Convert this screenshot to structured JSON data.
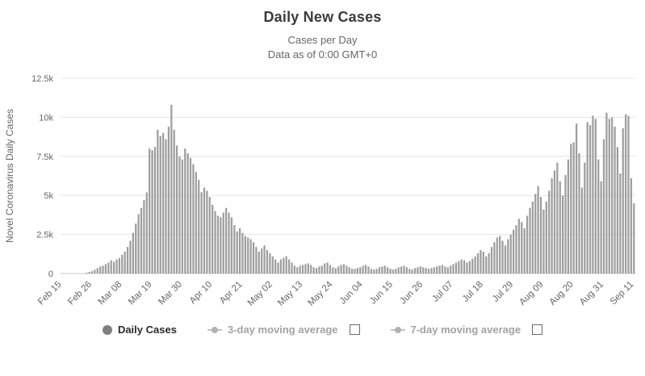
{
  "header": {
    "title": "Daily New Cases",
    "subtitle_line1": "Cases per Day",
    "subtitle_line2": "Data as of 0:00 GMT+0"
  },
  "legend": {
    "daily_cases_label": "Daily Cases",
    "ma3_label": "3-day moving average",
    "ma7_label": "7-day moving average",
    "ma3_checked": false,
    "ma7_checked": false
  },
  "colors": {
    "bar": "#9e9e9e",
    "grid": "#e6e6e6",
    "baseline": "#c9c9c9",
    "axis_text": "#666666",
    "title_text": "#3a3a3a",
    "legend_active": "#2b2b2b",
    "legend_inactive": "#a3a3a3"
  },
  "chart_data": {
    "type": "bar",
    "title": "Daily New Cases",
    "subtitle": [
      "Cases per Day",
      "Data as of 0:00 GMT+0"
    ],
    "ylabel": "Novel Coronavirus Daily Cases",
    "xlabel": "",
    "ylim": [
      0,
      12500
    ],
    "grid": true,
    "legend_position": "bottom",
    "ytick_values": [
      0,
      2500,
      5000,
      7500,
      10000,
      12500
    ],
    "ytick_labels": [
      "0",
      "2.5k",
      "5k",
      "7.5k",
      "10k",
      "12.5k"
    ],
    "xtick_every": 11,
    "xtick_labels": [
      "Feb 15",
      "Feb 26",
      "Mar 08",
      "Mar 19",
      "Mar 30",
      "Apr 10",
      "Apr 21",
      "May 02",
      "May 13",
      "May 24",
      "Jun 04",
      "Jun 15",
      "Jun 26",
      "Jul 07",
      "Jul 18",
      "Jul 29",
      "Aug 09",
      "Aug 20",
      "Aug 31",
      "Sep 11"
    ],
    "start_date": "Feb 15",
    "end_date": "Sep 11",
    "series_name": "Daily Cases",
    "values": [
      0,
      0,
      0,
      0,
      0,
      0,
      0,
      0,
      0,
      50,
      100,
      150,
      250,
      350,
      450,
      500,
      600,
      700,
      850,
      750,
      900,
      1000,
      1200,
      1400,
      1700,
      2100,
      2600,
      3200,
      3800,
      4200,
      4700,
      5200,
      8000,
      7900,
      8100,
      9200,
      8800,
      9000,
      8600,
      9400,
      10800,
      9200,
      8200,
      7500,
      7300,
      8000,
      7700,
      7400,
      7000,
      6500,
      6000,
      5200,
      5500,
      5300,
      4900,
      4400,
      4000,
      3700,
      3600,
      3900,
      4200,
      3900,
      3600,
      3100,
      2700,
      2900,
      2600,
      2400,
      2300,
      2200,
      2000,
      1700,
      1400,
      1600,
      1800,
      1500,
      1300,
      1100,
      900,
      700,
      900,
      1000,
      1100,
      900,
      700,
      500,
      400,
      500,
      550,
      600,
      650,
      550,
      400,
      350,
      450,
      500,
      650,
      700,
      550,
      400,
      350,
      450,
      550,
      600,
      500,
      400,
      300,
      300,
      350,
      400,
      500,
      550,
      450,
      300,
      250,
      300,
      400,
      450,
      500,
      400,
      300,
      250,
      300,
      400,
      450,
      500,
      400,
      300,
      250,
      350,
      400,
      450,
      400,
      350,
      300,
      350,
      400,
      450,
      500,
      550,
      450,
      400,
      500,
      600,
      700,
      800,
      900,
      850,
      700,
      800,
      950,
      1100,
      1300,
      1500,
      1400,
      1100,
      1300,
      1700,
      2000,
      2300,
      2400,
      2100,
      1800,
      2200,
      2500,
      2800,
      3100,
      3500,
      3300,
      2900,
      3700,
      4200,
      4600,
      5100,
      5600,
      4900,
      4100,
      4600,
      5300,
      6100,
      6600,
      7100,
      5900,
      5000,
      6300,
      7300,
      8300,
      8400,
      9600,
      7700,
      5500,
      7100,
      9700,
      9500,
      10100,
      9900,
      7300,
      5900,
      8600,
      10300,
      9900,
      10000,
      9400,
      8100,
      6400,
      9300,
      10200,
      10100,
      6100,
      4500
    ]
  }
}
